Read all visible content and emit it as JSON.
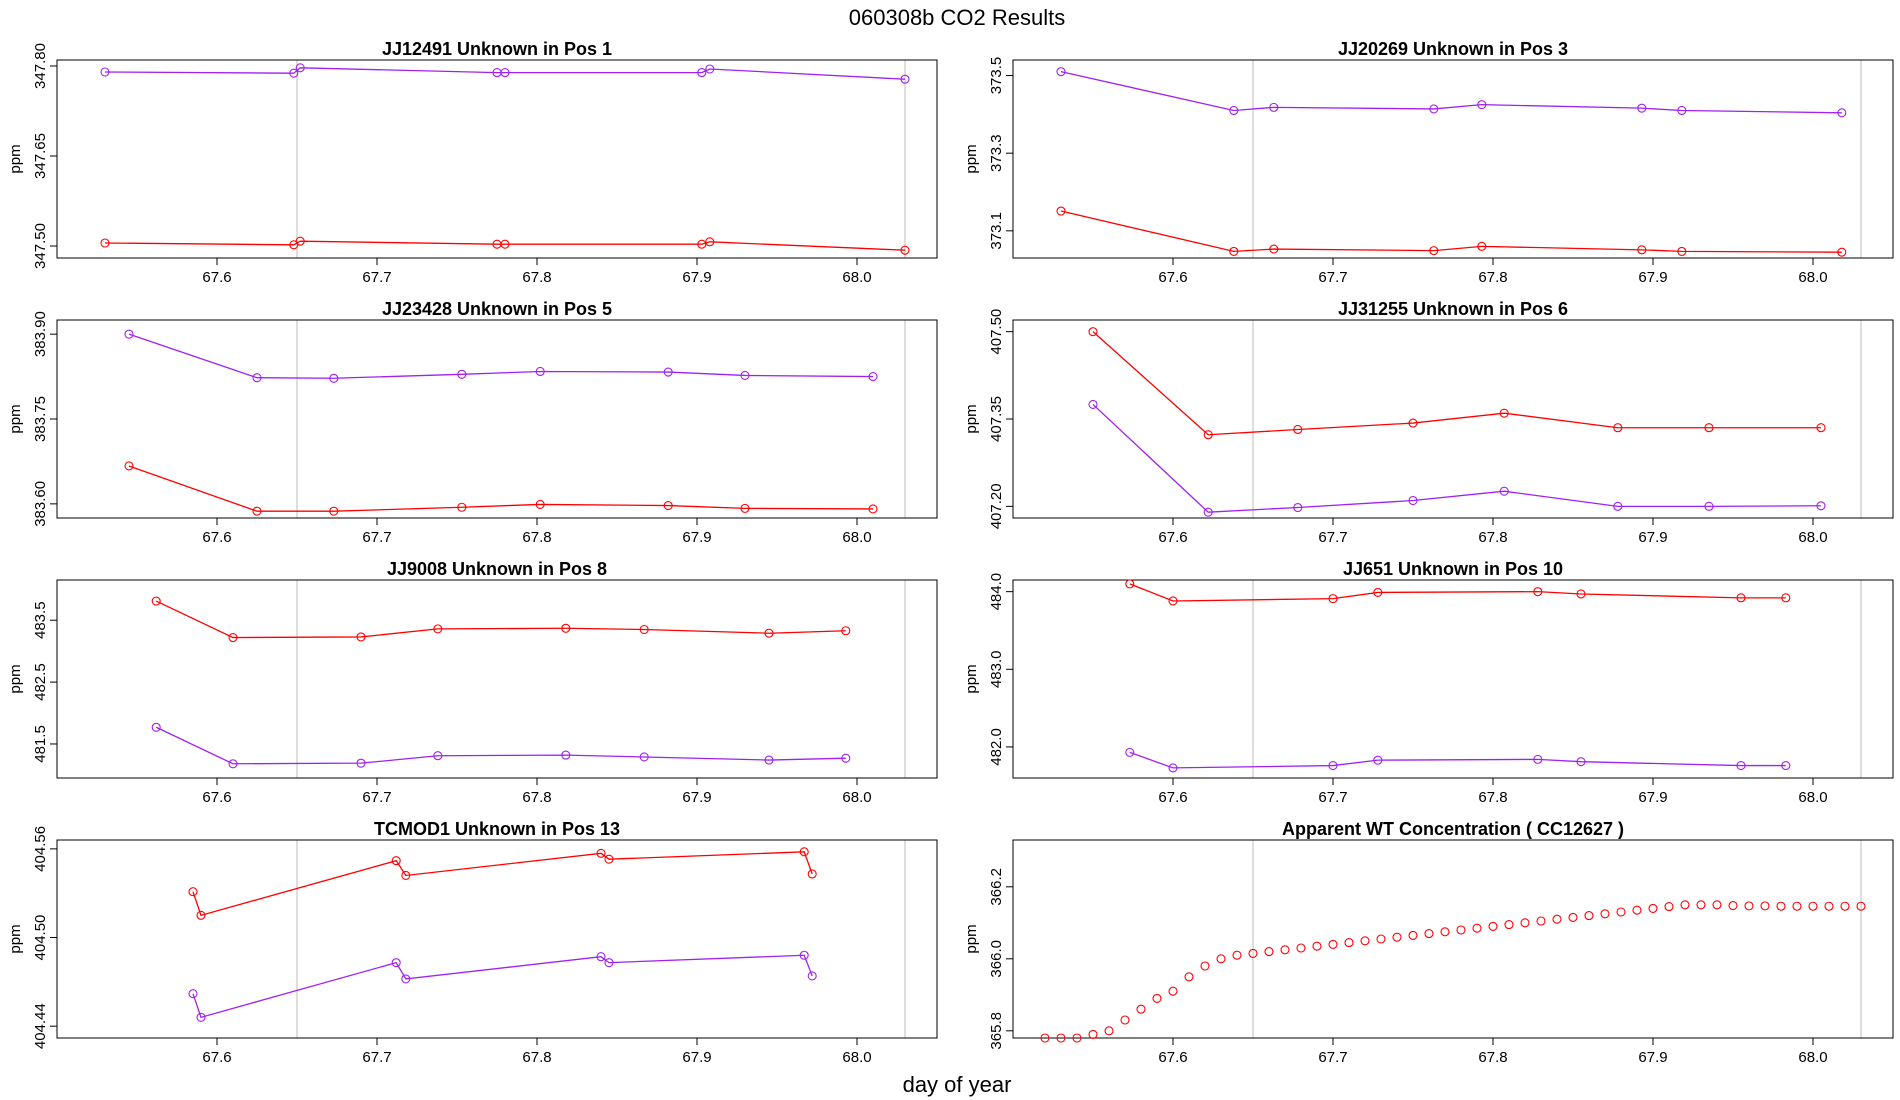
{
  "figure": {
    "title": "060308b  CO2 Results",
    "xlabel": "day of year"
  },
  "colors": {
    "series_a": "#ff0000",
    "series_b": "#a020f0",
    "vline": "#bebebe",
    "axis": "#000000"
  },
  "chart_data": [
    {
      "type": "line",
      "title": "JJ12491    Unknown in Pos 1",
      "ylabel": "ppm",
      "xlim": [
        67.5,
        68.05
      ],
      "xticks": [
        67.6,
        67.7,
        67.8,
        67.9,
        68.0
      ],
      "xtick_labels": [
        "67.6",
        "67.7",
        "67.8",
        "67.9",
        "68.0"
      ],
      "ylim": [
        347.48,
        347.81
      ],
      "yticks": [
        347.5,
        347.65,
        347.8
      ],
      "ytick_labels": [
        "347.50",
        "347.65",
        "347.80"
      ],
      "vlines": [
        67.65,
        68.03
      ],
      "series": [
        {
          "color": "#a020f0",
          "x": [
            67.53,
            67.648,
            67.652,
            67.775,
            67.78,
            67.903,
            67.908,
            68.03
          ],
          "y": [
            347.79,
            347.788,
            347.797,
            347.789,
            347.789,
            347.789,
            347.795,
            347.778
          ]
        },
        {
          "color": "#ff0000",
          "x": [
            67.53,
            67.648,
            67.652,
            67.775,
            67.78,
            67.903,
            67.908,
            68.03
          ],
          "y": [
            347.505,
            347.502,
            347.508,
            347.503,
            347.503,
            347.503,
            347.507,
            347.493
          ]
        }
      ]
    },
    {
      "type": "line",
      "title": "JJ20269    Unknown in Pos 3",
      "ylabel": "ppm",
      "xlim": [
        67.5,
        68.05
      ],
      "xticks": [
        67.6,
        67.7,
        67.8,
        67.9,
        68.0
      ],
      "xtick_labels": [
        "67.6",
        "67.7",
        "67.8",
        "67.9",
        "68.0"
      ],
      "ylim": [
        373.03,
        373.54
      ],
      "yticks": [
        373.1,
        373.3,
        373.5
      ],
      "ytick_labels": [
        "373.1",
        "373.3",
        "373.5"
      ],
      "vlines": [
        67.65,
        68.03
      ],
      "series": [
        {
          "color": "#a020f0",
          "x": [
            67.53,
            67.638,
            67.663,
            67.763,
            67.793,
            67.893,
            67.918,
            68.018
          ],
          "y": [
            373.51,
            373.41,
            373.418,
            373.414,
            373.425,
            373.416,
            373.41,
            373.404
          ]
        },
        {
          "color": "#ff0000",
          "x": [
            67.53,
            67.638,
            67.663,
            67.763,
            67.793,
            67.893,
            67.918,
            68.018
          ],
          "y": [
            373.151,
            373.047,
            373.053,
            373.049,
            373.06,
            373.051,
            373.047,
            373.045
          ]
        }
      ]
    },
    {
      "type": "line",
      "title": "JJ23428    Unknown in Pos 5",
      "ylabel": "ppm",
      "xlim": [
        67.5,
        68.05
      ],
      "xticks": [
        67.6,
        67.7,
        67.8,
        67.9,
        68.0
      ],
      "xtick_labels": [
        "67.6",
        "67.7",
        "67.8",
        "67.9",
        "68.0"
      ],
      "ylim": [
        383.575,
        383.925
      ],
      "yticks": [
        383.6,
        383.75,
        383.9
      ],
      "ytick_labels": [
        "383.60",
        "383.75",
        "383.90"
      ],
      "vlines": [
        67.65,
        68.03
      ],
      "series": [
        {
          "color": "#a020f0",
          "x": [
            67.545,
            67.625,
            67.673,
            67.753,
            67.802,
            67.882,
            67.93,
            68.01
          ],
          "y": [
            383.9,
            383.823,
            383.822,
            383.829,
            383.834,
            383.833,
            383.827,
            383.825
          ]
        },
        {
          "color": "#ff0000",
          "x": [
            67.545,
            67.625,
            67.673,
            67.753,
            67.802,
            67.882,
            67.93,
            68.01
          ],
          "y": [
            383.667,
            383.587,
            383.587,
            383.594,
            383.599,
            383.597,
            383.592,
            383.591
          ]
        }
      ]
    },
    {
      "type": "line",
      "title": "JJ31255    Unknown in Pos 6",
      "ylabel": "ppm",
      "xlim": [
        67.5,
        68.05
      ],
      "xticks": [
        67.6,
        67.7,
        67.8,
        67.9,
        68.0
      ],
      "xtick_labels": [
        "67.6",
        "67.7",
        "67.8",
        "67.9",
        "68.0"
      ],
      "ylim": [
        407.18,
        407.52
      ],
      "yticks": [
        407.2,
        407.35,
        407.5
      ],
      "ytick_labels": [
        "407.20",
        "407.35",
        "407.50"
      ],
      "vlines": [
        67.65,
        68.03
      ],
      "series": [
        {
          "color": "#ff0000",
          "x": [
            67.55,
            67.622,
            67.678,
            67.75,
            67.807,
            67.878,
            67.935,
            68.005
          ],
          "y": [
            407.5,
            407.323,
            407.332,
            407.343,
            407.36,
            407.335,
            407.335,
            407.335
          ]
        },
        {
          "color": "#a020f0",
          "x": [
            67.55,
            67.622,
            67.678,
            67.75,
            67.807,
            67.878,
            67.935,
            68.005
          ],
          "y": [
            407.375,
            407.19,
            407.198,
            407.21,
            407.226,
            407.2,
            407.2,
            407.201
          ]
        }
      ]
    },
    {
      "type": "line",
      "title": "JJ9008    Unknown in Pos 8",
      "ylabel": "ppm",
      "xlim": [
        67.5,
        68.05
      ],
      "xticks": [
        67.6,
        67.7,
        67.8,
        67.9,
        68.0
      ],
      "xtick_labels": [
        "67.6",
        "67.7",
        "67.8",
        "67.9",
        "68.0"
      ],
      "ylim": [
        480.95,
        484.15
      ],
      "yticks": [
        481.5,
        482.5,
        483.5
      ],
      "ytick_labels": [
        "481.5",
        "482.5",
        "483.5"
      ],
      "vlines": [
        67.65,
        68.03
      ],
      "series": [
        {
          "color": "#ff0000",
          "x": [
            67.562,
            67.61,
            67.69,
            67.738,
            67.818,
            67.867,
            67.945,
            67.993
          ],
          "y": [
            483.81,
            483.22,
            483.23,
            483.36,
            483.37,
            483.35,
            483.29,
            483.33
          ]
        },
        {
          "color": "#a020f0",
          "x": [
            67.562,
            67.61,
            67.69,
            67.738,
            67.818,
            67.867,
            67.945,
            67.993
          ],
          "y": [
            481.77,
            481.18,
            481.19,
            481.31,
            481.32,
            481.29,
            481.24,
            481.27
          ]
        }
      ]
    },
    {
      "type": "line",
      "title": "JJ651    Unknown in Pos 10",
      "ylabel": "ppm",
      "xlim": [
        67.5,
        68.05
      ],
      "xticks": [
        67.6,
        67.7,
        67.8,
        67.9,
        68.0
      ],
      "xtick_labels": [
        "67.6",
        "67.7",
        "67.8",
        "67.9",
        "68.0"
      ],
      "ylim": [
        481.6,
        484.15
      ],
      "yticks": [
        482.0,
        483.0,
        484.0
      ],
      "ytick_labels": [
        "482.0",
        "483.0",
        "484.0"
      ],
      "vlines": [
        67.65,
        68.03
      ],
      "series": [
        {
          "color": "#ff0000",
          "x": [
            67.573,
            67.6,
            67.7,
            67.728,
            67.828,
            67.855,
            67.955,
            67.983
          ],
          "y": [
            484.1,
            483.88,
            483.91,
            483.99,
            484.0,
            483.97,
            483.92,
            483.92
          ]
        },
        {
          "color": "#a020f0",
          "x": [
            67.573,
            67.6,
            67.7,
            67.728,
            67.828,
            67.855,
            67.955,
            67.983
          ],
          "y": [
            481.93,
            481.73,
            481.76,
            481.83,
            481.84,
            481.81,
            481.76,
            481.76
          ]
        }
      ]
    },
    {
      "type": "line",
      "title": "TCMOD1    Unknown in Pos 13",
      "ylabel": "ppm",
      "xlim": [
        67.5,
        68.05
      ],
      "xticks": [
        67.6,
        67.7,
        67.8,
        67.9,
        68.0
      ],
      "xtick_labels": [
        "67.6",
        "67.7",
        "67.8",
        "67.9",
        "68.0"
      ],
      "ylim": [
        404.432,
        404.566
      ],
      "yticks": [
        404.44,
        404.5,
        404.56
      ],
      "ytick_labels": [
        "404.44",
        "404.50",
        "404.56"
      ],
      "vlines": [
        67.65,
        68.03
      ],
      "series": [
        {
          "color": "#ff0000",
          "x": [
            67.585,
            67.59,
            67.712,
            67.718,
            67.84,
            67.845,
            67.967,
            67.972
          ],
          "y": [
            404.531,
            404.515,
            404.552,
            404.542,
            404.557,
            404.553,
            404.558,
            404.543
          ]
        },
        {
          "color": "#a020f0",
          "x": [
            67.585,
            67.59,
            67.712,
            67.718,
            67.84,
            67.845,
            67.967,
            67.972
          ],
          "y": [
            404.462,
            404.446,
            404.483,
            404.472,
            404.487,
            404.483,
            404.488,
            404.474
          ]
        }
      ]
    },
    {
      "type": "scatter",
      "title": "Apparent WT Concentration ( CC12627 )",
      "ylabel": "ppm",
      "xlim": [
        67.5,
        68.05
      ],
      "xticks": [
        67.6,
        67.7,
        67.8,
        67.9,
        68.0
      ],
      "xtick_labels": [
        "67.6",
        "67.7",
        "67.8",
        "67.9",
        "68.0"
      ],
      "ylim": [
        365.78,
        366.33
      ],
      "yticks": [
        365.8,
        366.0,
        366.2
      ],
      "ytick_labels": [
        "365.8",
        "366.0",
        "366.2"
      ],
      "vlines": [
        67.65,
        68.03
      ],
      "series": [
        {
          "color": "#ff0000",
          "x": [
            67.52,
            67.53,
            67.54,
            67.55,
            67.56,
            67.57,
            67.58,
            67.59,
            67.6,
            67.61,
            67.62,
            67.63,
            67.64,
            67.65,
            67.66,
            67.67,
            67.68,
            67.69,
            67.7,
            67.71,
            67.72,
            67.73,
            67.74,
            67.75,
            67.76,
            67.77,
            67.78,
            67.79,
            67.8,
            67.81,
            67.82,
            67.83,
            67.84,
            67.85,
            67.86,
            67.87,
            67.88,
            67.89,
            67.9,
            67.91,
            67.92,
            67.93,
            67.94,
            67.95,
            67.96,
            67.97,
            67.98,
            67.99,
            68.0,
            68.01,
            68.02,
            68.03
          ],
          "y": [
            365.78,
            365.78,
            365.78,
            365.79,
            365.8,
            365.83,
            365.86,
            365.89,
            365.91,
            365.95,
            365.98,
            366.0,
            366.01,
            366.015,
            366.02,
            366.025,
            366.03,
            366.035,
            366.04,
            366.045,
            366.05,
            366.055,
            366.06,
            366.065,
            366.07,
            366.075,
            366.08,
            366.085,
            366.09,
            366.095,
            366.1,
            366.105,
            366.11,
            366.115,
            366.12,
            366.125,
            366.13,
            366.135,
            366.14,
            366.145,
            366.15,
            366.15,
            366.15,
            366.148,
            366.147,
            366.147,
            366.146,
            366.146,
            366.146,
            366.146,
            366.146,
            366.146
          ]
        }
      ]
    }
  ]
}
